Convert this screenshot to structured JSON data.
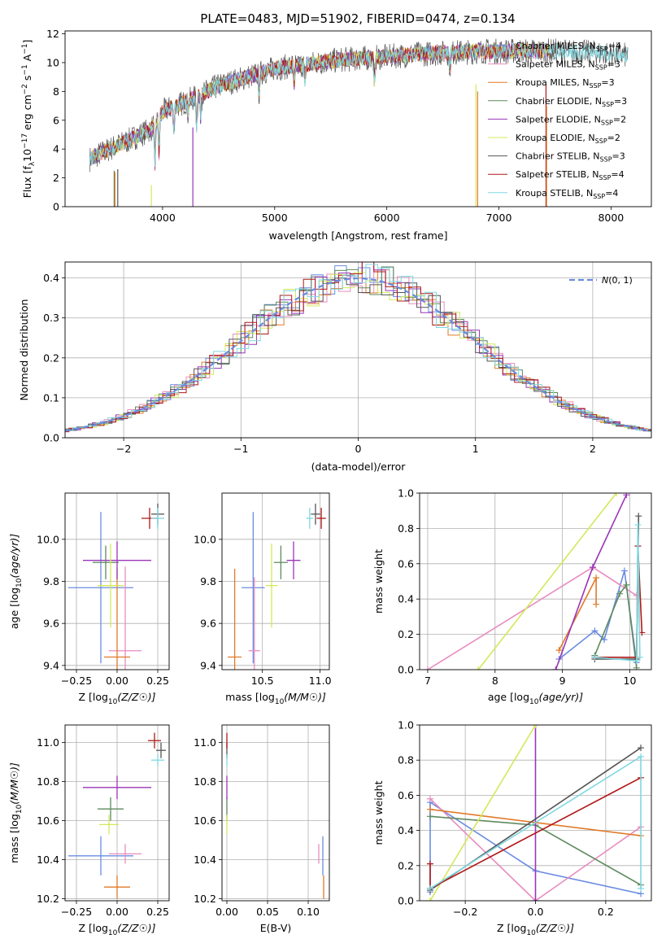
{
  "title": "PLATE=0483, MJD=51902, FIBERID=0474, z=0.134",
  "series": [
    {
      "name": "Chabrier MILES, N$_{SSP}$=4",
      "legend": [
        "Chabrier MILES, N",
        "SSP",
        "=4"
      ],
      "color": "#6a8be0"
    },
    {
      "name": "Salpeter MILES, N$_{SSP}$=3",
      "legend": [
        "Salpeter MILES, N",
        "SSP",
        "=3"
      ],
      "color": "#e88bc0"
    },
    {
      "name": "Kroupa MILES, N$_{SSP}$=3",
      "legend": [
        "Kroupa MILES, N",
        "SSP",
        "=3"
      ],
      "color": "#e07a2a"
    },
    {
      "name": "Chabrier ELODIE, N$_{SSP}$=3",
      "legend": [
        "Chabrier ELODIE, N",
        "SSP",
        "=3"
      ],
      "color": "#5e8a5e"
    },
    {
      "name": "Salpeter ELODIE, N$_{SSP}$=2",
      "legend": [
        "Salpeter ELODIE, N",
        "SSP",
        "=2"
      ],
      "color": "#9a36b8"
    },
    {
      "name": "Kroupa ELODIE, N$_{SSP}$=2",
      "legend": [
        "Kroupa ELODIE, N",
        "SSP",
        "=2"
      ],
      "color": "#d4e85a"
    },
    {
      "name": "Chabrier STELIB, N$_{SSP}$=3",
      "legend": [
        "Chabrier STELIB, N",
        "SSP",
        "=3"
      ],
      "color": "#555555"
    },
    {
      "name": "Salpeter STELIB, N$_{SSP}$=4",
      "legend": [
        "Salpeter STELIB, N",
        "SSP",
        "=4"
      ],
      "color": "#b01818"
    },
    {
      "name": "Kroupa STELIB, N$_{SSP}$=4",
      "legend": [
        "Kroupa STELIB, N",
        "SSP",
        "=4"
      ],
      "color": "#7fd8e0"
    }
  ],
  "chart_data": [
    {
      "id": "spectrum",
      "type": "line",
      "xlabel": "wavelength [Angstrom, rest frame]",
      "ylabel": "Flux [fλ10⁻¹⁷ erg cm⁻² s⁻¹ A⁻¹]",
      "ylabel_parts": [
        "Flux [f",
        "λ",
        "10",
        "−17",
        " erg cm",
        "−2",
        " s",
        "−1",
        " A",
        "−1",
        "]"
      ],
      "xlim": [
        3130,
        8360
      ],
      "ylim": [
        0,
        12.2
      ],
      "xticks": [
        4000,
        5000,
        6000,
        7000,
        8000
      ],
      "yticks": [
        0,
        2,
        4,
        6,
        8,
        10,
        12
      ],
      "profile_x": [
        3350,
        3500,
        3700,
        3900,
        4000,
        4300,
        4500,
        4800,
        5000,
        5300,
        5600,
        6000,
        6300,
        6600,
        6900,
        7200,
        7500,
        7800,
        8000,
        8150
      ],
      "profile_y": [
        3.3,
        3.9,
        4.6,
        5.4,
        6.6,
        7.6,
        8.4,
        9.1,
        9.6,
        9.9,
        10.2,
        10.4,
        10.6,
        10.7,
        10.8,
        10.8,
        10.8,
        10.7,
        10.6,
        10.5
      ]
    },
    {
      "id": "residuals",
      "type": "histogram",
      "xlabel": "(data-model)/error",
      "ylabel": "Normed distribution",
      "xlim": [
        -2.5,
        2.5
      ],
      "ylim": [
        0,
        0.44
      ],
      "xticks": [
        -2,
        -1,
        0,
        1,
        2
      ],
      "xtick_labels": [
        "−2",
        "−1",
        "0",
        "1",
        "2"
      ],
      "yticks": [
        0.0,
        0.1,
        0.2,
        0.3,
        0.4
      ],
      "ytick_labels": [
        "0.0",
        "0.1",
        "0.2",
        "0.3",
        "0.4"
      ],
      "bin_width": 0.1,
      "reference_curve": {
        "label": "N(0,1)",
        "color": "#6a8be0"
      }
    },
    {
      "id": "age-vs-Z",
      "type": "errorbar",
      "xlabel": "Z [log10(Z/Z☉)]",
      "ylabel": "age  [log10(age/yr)]",
      "xlim": [
        -0.32,
        0.32
      ],
      "ylim": [
        9.38,
        10.22
      ],
      "xticks": [
        -0.25,
        0.0,
        0.25
      ],
      "xtick_labels": [
        "−0.25",
        "0.00",
        "0.25"
      ],
      "yticks": [
        9.4,
        9.6,
        9.8,
        10.0
      ],
      "ytick_labels": [
        "9.4",
        "9.6",
        "9.8",
        "10.0"
      ],
      "points": [
        {
          "s": 0,
          "x": -0.1,
          "xe": 0.2,
          "y": 9.77,
          "ye": 0.36
        },
        {
          "s": 1,
          "x": 0.05,
          "xe": 0.1,
          "y": 9.47,
          "ye": 0.4
        },
        {
          "s": 2,
          "x": 0.0,
          "xe": 0.08,
          "y": 9.44,
          "ye": 0.42
        },
        {
          "s": 3,
          "x": -0.07,
          "xe": 0.08,
          "y": 9.89,
          "ye": 0.08
        },
        {
          "s": 4,
          "x": 0.0,
          "xe": 0.21,
          "y": 9.9,
          "ye": 0.09
        },
        {
          "s": 5,
          "x": -0.04,
          "xe": 0.08,
          "y": 9.78,
          "ye": 0.2
        },
        {
          "s": 6,
          "x": 0.25,
          "xe": 0.04,
          "y": 10.12,
          "ye": 0.05
        },
        {
          "s": 7,
          "x": 0.2,
          "xe": 0.05,
          "y": 10.1,
          "ye": 0.05
        },
        {
          "s": 8,
          "x": 0.25,
          "xe": 0.04,
          "y": 10.1,
          "ye": 0.05
        }
      ]
    },
    {
      "id": "age-vs-mass",
      "type": "errorbar",
      "xlabel": "mass [log10(M/M☉)]",
      "ylabel": "",
      "xlim": [
        10.15,
        11.08
      ],
      "ylim": [
        9.38,
        10.22
      ],
      "xticks": [
        10.5,
        11.0
      ],
      "xtick_labels": [
        "10.5",
        "11.0"
      ],
      "yticks": [
        9.4,
        9.6,
        9.8,
        10.0
      ],
      "ytick_labels": [
        "9.4",
        "9.6",
        "9.8",
        "10.0"
      ],
      "points": [
        {
          "s": 0,
          "x": 10.42,
          "xe": 0.1,
          "y": 9.77,
          "ye": 0.36
        },
        {
          "s": 1,
          "x": 10.43,
          "xe": 0.05,
          "y": 9.47,
          "ye": 0.35
        },
        {
          "s": 2,
          "x": 10.26,
          "xe": 0.06,
          "y": 9.44,
          "ye": 0.42
        },
        {
          "s": 3,
          "x": 10.66,
          "xe": 0.06,
          "y": 9.89,
          "ye": 0.08
        },
        {
          "s": 4,
          "x": 10.77,
          "xe": 0.06,
          "y": 9.9,
          "ye": 0.09
        },
        {
          "s": 5,
          "x": 10.58,
          "xe": 0.05,
          "y": 9.78,
          "ye": 0.2
        },
        {
          "s": 6,
          "x": 10.96,
          "xe": 0.04,
          "y": 10.12,
          "ye": 0.05
        },
        {
          "s": 7,
          "x": 11.01,
          "xe": 0.04,
          "y": 10.1,
          "ye": 0.05
        },
        {
          "s": 8,
          "x": 10.91,
          "xe": 0.03,
          "y": 10.1,
          "ye": 0.05
        }
      ]
    },
    {
      "id": "massweight-vs-age",
      "type": "line",
      "xlabel": "age  [log10(age/yr)]",
      "ylabel": "mass weight",
      "xlim": [
        6.88,
        10.32
      ],
      "ylim": [
        0,
        1
      ],
      "xticks": [
        7,
        8,
        9,
        10
      ],
      "xtick_labels": [
        "7",
        "8",
        "9",
        "10"
      ],
      "yticks": [
        0.0,
        0.2,
        0.4,
        0.6,
        0.8,
        1.0
      ],
      "ytick_labels": [
        "0.0",
        "0.2",
        "0.4",
        "0.6",
        "0.8",
        "1.0"
      ],
      "lines": [
        {
          "s": 0,
          "x": [
            8.95,
            9.48,
            9.62,
            9.92,
            10.1
          ],
          "y": [
            0.06,
            0.22,
            0.17,
            0.56,
            0.04
          ]
        },
        {
          "s": 1,
          "x": [
            7.0,
            9.45,
            10.1
          ],
          "y": [
            0.0,
            0.58,
            0.42
          ]
        },
        {
          "s": 2,
          "x": [
            8.95,
            9.5,
            9.5
          ],
          "y": [
            0.11,
            0.52,
            0.37
          ]
        },
        {
          "s": 3,
          "x": [
            9.48,
            9.85,
            9.95,
            10.1
          ],
          "y": [
            0.08,
            0.43,
            0.48,
            0.01
          ]
        },
        {
          "s": 4,
          "x": [
            8.9,
            9.45,
            9.95
          ],
          "y": [
            0.0,
            0.58,
            0.99
          ]
        },
        {
          "s": 5,
          "x": [
            7.75,
            9.8
          ],
          "y": [
            0.0,
            1.0
          ]
        },
        {
          "s": 6,
          "x": [
            9.48,
            10.1,
            10.13
          ],
          "y": [
            0.06,
            0.06,
            0.87
          ]
        },
        {
          "s": 7,
          "x": [
            9.48,
            10.1,
            10.12,
            10.18
          ],
          "y": [
            0.07,
            0.07,
            0.7,
            0.21
          ]
        },
        {
          "s": 8,
          "x": [
            9.48,
            10.1,
            10.12,
            10.15
          ],
          "y": [
            0.07,
            0.05,
            0.82,
            0.07
          ]
        }
      ]
    },
    {
      "id": "mass-vs-Z",
      "type": "errorbar",
      "xlabel": "Z [log10(Z/Z☉)]",
      "ylabel": "mass [log10(M/M☉)]",
      "xlim": [
        -0.32,
        0.32
      ],
      "ylim": [
        10.19,
        11.09
      ],
      "xticks": [
        -0.25,
        0.0,
        0.25
      ],
      "xtick_labels": [
        "−0.25",
        "0.00",
        "0.25"
      ],
      "yticks": [
        10.2,
        10.4,
        10.6,
        10.8,
        11.0
      ],
      "ytick_labels": [
        "10.2",
        "10.4",
        "10.6",
        "10.8",
        "11.0"
      ],
      "points": [
        {
          "s": 0,
          "x": -0.1,
          "xe": 0.2,
          "y": 10.42,
          "ye": 0.1
        },
        {
          "s": 1,
          "x": 0.05,
          "xe": 0.1,
          "y": 10.43,
          "ye": 0.05
        },
        {
          "s": 2,
          "x": 0.0,
          "xe": 0.08,
          "y": 10.26,
          "ye": 0.06
        },
        {
          "s": 3,
          "x": -0.04,
          "xe": 0.08,
          "y": 10.66,
          "ye": 0.06
        },
        {
          "s": 4,
          "x": 0.0,
          "xe": 0.21,
          "y": 10.77,
          "ye": 0.06
        },
        {
          "s": 5,
          "x": -0.05,
          "xe": 0.06,
          "y": 10.58,
          "ye": 0.05
        },
        {
          "s": 6,
          "x": 0.27,
          "xe": 0.03,
          "y": 10.96,
          "ye": 0.04
        },
        {
          "s": 7,
          "x": 0.23,
          "xe": 0.04,
          "y": 11.01,
          "ye": 0.04
        },
        {
          "s": 8,
          "x": 0.25,
          "xe": 0.04,
          "y": 10.91,
          "ye": 0.03
        }
      ]
    },
    {
      "id": "mass-vs-ebv",
      "type": "errorbar",
      "xlabel": "E(B-V)",
      "ylabel": "",
      "xlim": [
        -0.006,
        0.126
      ],
      "ylim": [
        10.19,
        11.09
      ],
      "xticks": [
        0.0,
        0.05,
        0.1
      ],
      "xtick_labels": [
        "0.00",
        "0.05",
        "0.10"
      ],
      "yticks": [
        10.2,
        10.4,
        10.6,
        10.8,
        11.0
      ],
      "ytick_labels": [
        "10.2",
        "10.4",
        "10.6",
        "10.8",
        "11.0"
      ],
      "points": [
        {
          "s": 0,
          "x": 0.118,
          "xe": 0.0,
          "y": 10.42,
          "ye": 0.1
        },
        {
          "s": 1,
          "x": 0.113,
          "xe": 0.0,
          "y": 10.43,
          "ye": 0.05
        },
        {
          "s": 2,
          "x": 0.119,
          "xe": 0.0,
          "y": 10.26,
          "ye": 0.06
        },
        {
          "s": 3,
          "x": 0.0,
          "xe": 0.0,
          "y": 10.66,
          "ye": 0.06
        },
        {
          "s": 4,
          "x": 0.0,
          "xe": 0.0,
          "y": 10.77,
          "ye": 0.06
        },
        {
          "s": 5,
          "x": 0.0,
          "xe": 0.0,
          "y": 10.58,
          "ye": 0.05
        },
        {
          "s": 6,
          "x": 0.0,
          "xe": 0.0,
          "y": 10.96,
          "ye": 0.04
        },
        {
          "s": 7,
          "x": 0.0,
          "xe": 0.0,
          "y": 11.01,
          "ye": 0.04
        },
        {
          "s": 8,
          "x": 0.0,
          "xe": 0.0,
          "y": 10.91,
          "ye": 0.03
        }
      ]
    },
    {
      "id": "massweight-vs-Z",
      "type": "line",
      "xlabel": "Z [log10(Z/Z☉)]",
      "ylabel": "mass weight",
      "xlim": [
        -0.33,
        0.33
      ],
      "ylim": [
        0,
        1
      ],
      "xticks": [
        -0.2,
        0.0,
        0.2
      ],
      "xtick_labels": [
        "−0.2",
        "0.0",
        "0.2"
      ],
      "yticks": [
        0.0,
        0.2,
        0.4,
        0.6,
        0.8,
        1.0
      ],
      "ytick_labels": [
        "0.0",
        "0.2",
        "0.4",
        "0.6",
        "0.8",
        "1.0"
      ],
      "lines": [
        {
          "s": 0,
          "x": [
            -0.3,
            -0.3,
            0.0,
            0.3
          ],
          "y": [
            0.05,
            0.56,
            0.17,
            0.04
          ]
        },
        {
          "s": 1,
          "x": [
            -0.3,
            0.0,
            0.3
          ],
          "y": [
            0.58,
            0.0,
            0.42
          ]
        },
        {
          "s": 2,
          "x": [
            -0.3,
            0.3
          ],
          "y": [
            0.52,
            0.37
          ]
        },
        {
          "s": 3,
          "x": [
            -0.3,
            0.0,
            0.3
          ],
          "y": [
            0.48,
            0.43,
            0.09
          ]
        },
        {
          "s": 4,
          "x": [
            0.0,
            0.0
          ],
          "y": [
            0.0,
            1.0
          ]
        },
        {
          "s": 5,
          "x": [
            -0.3,
            0.0
          ],
          "y": [
            0.0,
            1.0
          ]
        },
        {
          "s": 6,
          "x": [
            -0.3,
            0.3
          ],
          "y": [
            0.06,
            0.87
          ]
        },
        {
          "s": 7,
          "x": [
            -0.3,
            -0.3,
            0.3
          ],
          "y": [
            0.21,
            0.07,
            0.7
          ]
        },
        {
          "s": 8,
          "x": [
            -0.3,
            0.3,
            0.3
          ],
          "y": [
            0.07,
            0.82,
            0.07
          ]
        }
      ]
    }
  ]
}
